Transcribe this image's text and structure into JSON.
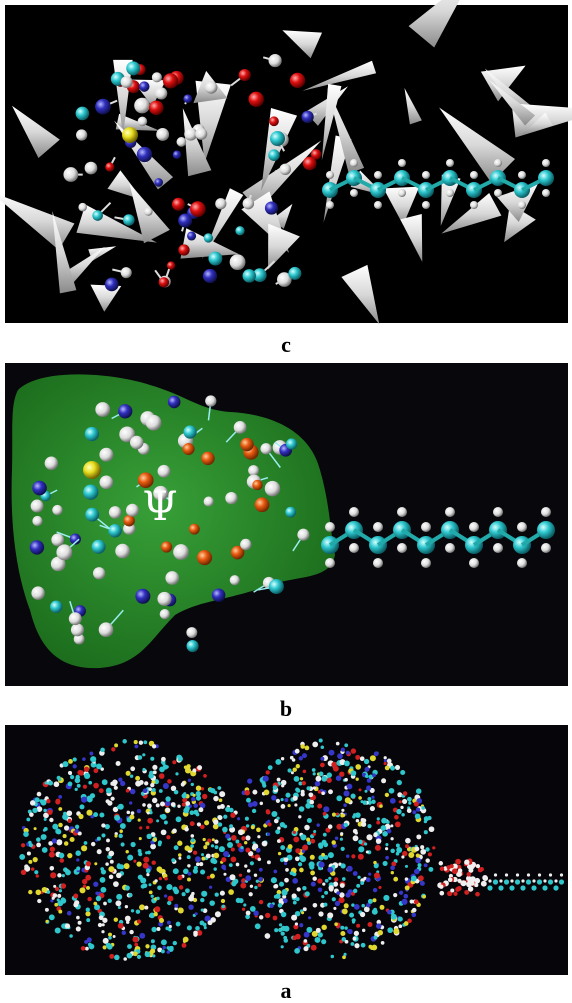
{
  "panels": [
    {
      "label": "c"
    },
    {
      "label": "b",
      "annotation": "Ψ"
    },
    {
      "label": "a"
    }
  ]
}
